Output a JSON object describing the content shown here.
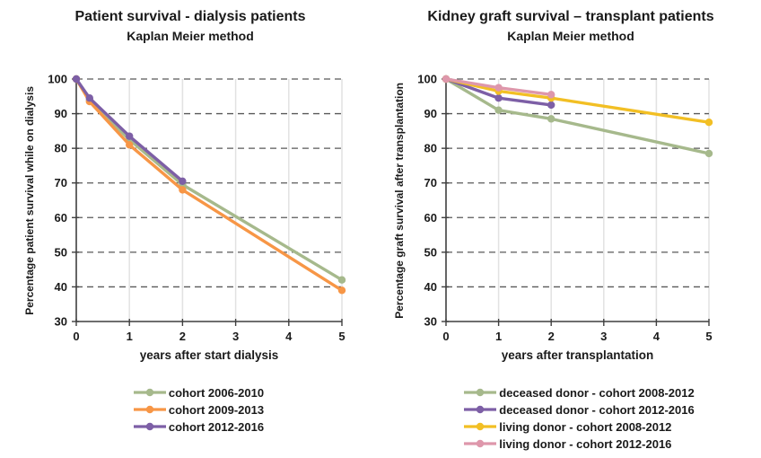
{
  "chart_data": [
    {
      "type": "line",
      "title": "Patient survival - dialysis patients",
      "subtitle": "Kaplan Meier method",
      "xlabel": "years after start dialysis",
      "ylabel": "Percentage patient survival while on dialysis",
      "xlim": [
        0,
        5
      ],
      "ylim": [
        30,
        100
      ],
      "xticks": [
        0,
        1,
        2,
        3,
        4,
        5
      ],
      "yticks": [
        30,
        40,
        50,
        60,
        70,
        80,
        90,
        100
      ],
      "grid": {
        "horizontal": "dashed-dark-gray",
        "vertical": "solid-light-gray"
      },
      "legend_position": "bottom",
      "series": [
        {
          "name": "cohort 2006-2010",
          "color": "#a6b98c",
          "x": [
            0,
            0.25,
            1,
            2,
            5
          ],
          "y": [
            100,
            94,
            82.5,
            69.5,
            42
          ]
        },
        {
          "name": "cohort 2009-2013",
          "color": "#f79646",
          "x": [
            0,
            0.25,
            1,
            2,
            5
          ],
          "y": [
            100,
            93.5,
            81,
            68,
            39
          ]
        },
        {
          "name": "cohort 2012-2016",
          "color": "#7d5fa6",
          "x": [
            0,
            0.25,
            1,
            2
          ],
          "y": [
            100,
            94.5,
            83.5,
            70.5
          ]
        }
      ]
    },
    {
      "type": "line",
      "title": "Kidney graft survival – transplant patients",
      "subtitle": "Kaplan Meier method",
      "xlabel": "years after transplantation",
      "ylabel": "Percentage graft survival after transplantation",
      "xlim": [
        0,
        5
      ],
      "ylim": [
        30,
        100
      ],
      "xticks": [
        0,
        1,
        2,
        3,
        4,
        5
      ],
      "yticks": [
        30,
        40,
        50,
        60,
        70,
        80,
        90,
        100
      ],
      "grid": {
        "horizontal": "dashed-dark-gray",
        "vertical": "solid-light-gray"
      },
      "legend_position": "bottom",
      "series": [
        {
          "name": "deceased donor - cohort 2008-2012",
          "color": "#a6b98c",
          "x": [
            0,
            1,
            2,
            5
          ],
          "y": [
            100,
            91,
            88.5,
            78.5
          ]
        },
        {
          "name": "deceased donor - cohort 2012-2016",
          "color": "#7d5fa6",
          "x": [
            0,
            1,
            2
          ],
          "y": [
            100,
            94.5,
            92.5
          ]
        },
        {
          "name": "living donor - cohort 2008-2012",
          "color": "#f2bf24",
          "x": [
            0,
            1,
            2,
            5
          ],
          "y": [
            100,
            96.5,
            94.5,
            87.5
          ]
        },
        {
          "name": "living donor - cohort 2012-2016",
          "color": "#de97ab",
          "x": [
            0,
            1,
            2
          ],
          "y": [
            100,
            97.5,
            95.5
          ]
        }
      ]
    }
  ],
  "style_colors": {
    "horizontal_gridline": "#595959",
    "vertical_gridline": "#e2e2e2",
    "axis_line": "#3f3f3f",
    "text": "#1a1a1a"
  }
}
